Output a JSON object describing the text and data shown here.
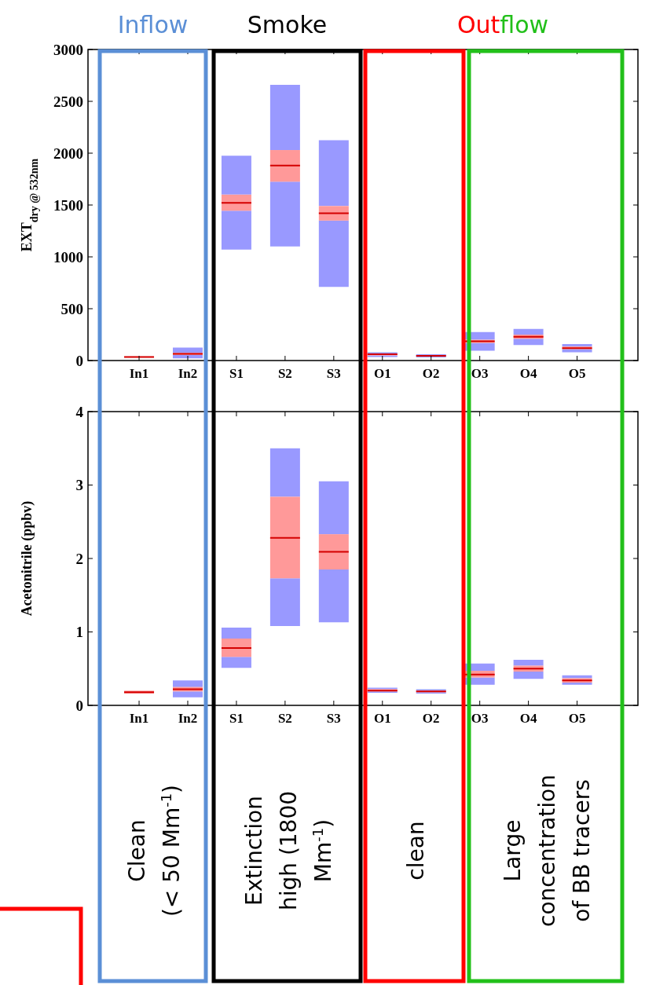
{
  "chart_data": [
    {
      "type": "box",
      "ylabel": "EXT$_{dry @ 532nm}$",
      "categories": [
        "In1",
        "In2",
        "S1",
        "S2",
        "S3",
        "O1",
        "O2",
        "O3",
        "O4",
        "O5"
      ],
      "ylim": [
        0,
        3000
      ],
      "yticks": [
        0,
        500,
        1000,
        1500,
        2000,
        2500,
        3000
      ],
      "grid": false,
      "series": [
        {
          "color": "#ff9999",
          "boxes": [
            {
              "low": 30,
              "q1": 30,
              "median": 35,
              "q3": 40,
              "high": 40
            },
            {
              "low": 20,
              "q1": 55,
              "median": 65,
              "q3": 75,
              "high": 125
            },
            {
              "low": 1070,
              "q1": 1445,
              "median": 1520,
              "q3": 1600,
              "high": 1975
            },
            {
              "low": 1100,
              "q1": 1725,
              "median": 1880,
              "q3": 2030,
              "high": 2660
            },
            {
              "low": 710,
              "q1": 1350,
              "median": 1420,
              "q3": 1490,
              "high": 2125
            },
            {
              "low": 35,
              "q1": 50,
              "median": 60,
              "q3": 65,
              "high": 80
            },
            {
              "low": 30,
              "q1": 44,
              "median": 45,
              "q3": 47,
              "high": 60
            },
            {
              "low": 95,
              "q1": 170,
              "median": 185,
              "q3": 200,
              "high": 275
            },
            {
              "low": 150,
              "q1": 210,
              "median": 230,
              "q3": 250,
              "high": 305
            },
            {
              "low": 80,
              "q1": 110,
              "median": 120,
              "q3": 135,
              "high": 160
            }
          ]
        }
      ],
      "annotations": [
        "Inflow",
        "Smoke",
        "Outflow"
      ]
    },
    {
      "type": "box",
      "ylabel": "Acetonitrile (ppbv)",
      "categories": [
        "In1",
        "In2",
        "S1",
        "S2",
        "S3",
        "O1",
        "O2",
        "O3",
        "O4",
        "O5"
      ],
      "ylim": [
        0,
        4
      ],
      "yticks": [
        0,
        1,
        2,
        3,
        4
      ],
      "grid": false,
      "series": [
        {
          "color": "#ff9999",
          "boxes": [
            {
              "low": 0.16,
              "q1": 0.16,
              "median": 0.18,
              "q3": 0.2,
              "high": 0.2
            },
            {
              "low": 0.11,
              "q1": 0.19,
              "median": 0.22,
              "q3": 0.25,
              "high": 0.34
            },
            {
              "low": 0.51,
              "q1": 0.66,
              "median": 0.78,
              "q3": 0.91,
              "high": 1.06
            },
            {
              "low": 1.08,
              "q1": 1.73,
              "median": 2.28,
              "q3": 2.84,
              "high": 3.5
            },
            {
              "low": 1.13,
              "q1": 1.85,
              "median": 2.09,
              "q3": 2.33,
              "high": 3.05
            },
            {
              "low": 0.17,
              "q1": 0.19,
              "median": 0.2,
              "q3": 0.22,
              "high": 0.24
            },
            {
              "low": 0.16,
              "q1": 0.18,
              "median": 0.19,
              "q3": 0.2,
              "high": 0.22
            },
            {
              "low": 0.28,
              "q1": 0.38,
              "median": 0.42,
              "q3": 0.47,
              "high": 0.57
            },
            {
              "low": 0.36,
              "q1": 0.46,
              "median": 0.5,
              "q3": 0.54,
              "high": 0.62
            },
            {
              "low": 0.28,
              "q1": 0.31,
              "median": 0.34,
              "q3": 0.37,
              "high": 0.41
            }
          ]
        }
      ],
      "annotations": [
        "Clean\n(< 50 Mm$^{-1}$)",
        "Extinction\nhigh (1800\nMm$^{-1}$)",
        "clean",
        "Large\nconcentration\nof  BB tracers"
      ]
    }
  ]
}
